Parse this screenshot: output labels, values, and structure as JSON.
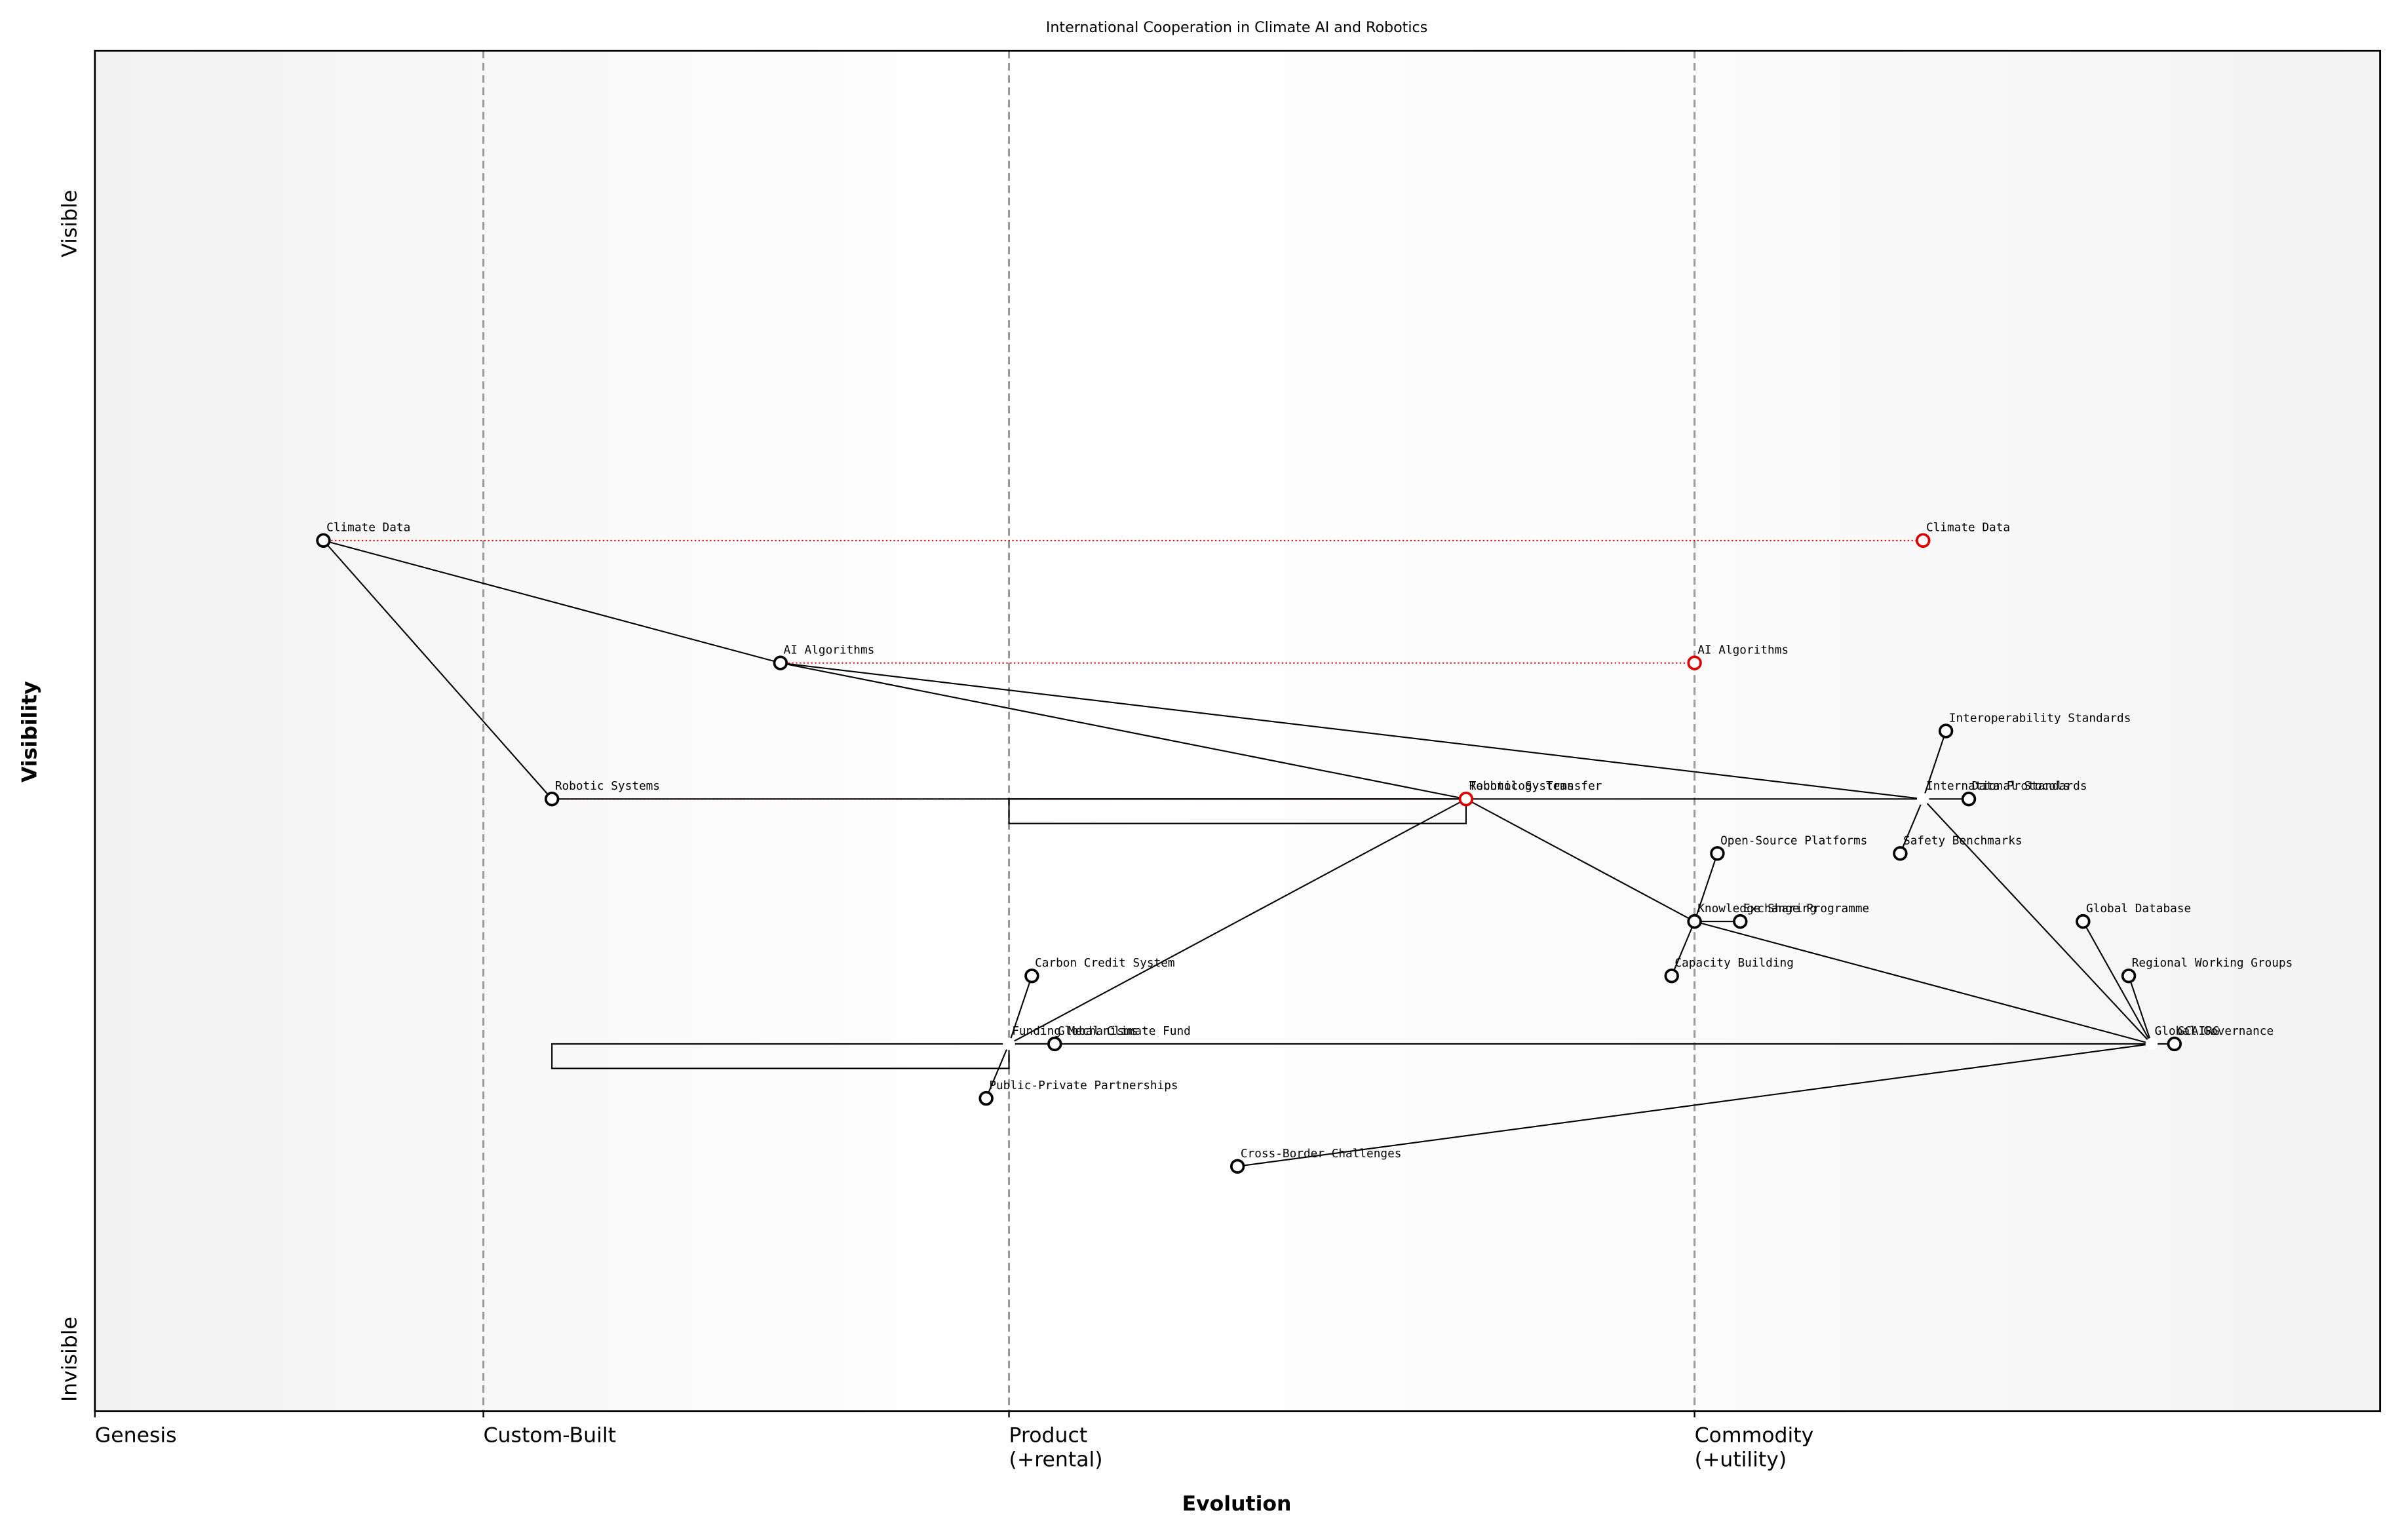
{
  "chart_data": {
    "type": "wardley",
    "title": "International Cooperation in Climate AI and Robotics",
    "x_label": "Evolution",
    "y_label": "Visibility",
    "y_top_label": "Visible",
    "y_bottom_label": "Invisible",
    "xlim": [
      0,
      1
    ],
    "ylim": [
      0,
      1
    ],
    "xticks": [
      {
        "value": 0,
        "label": "Genesis"
      },
      {
        "value": 0.17,
        "label": "Custom-Built"
      },
      {
        "value": 0.4,
        "label": "Product\n(+rental)"
      },
      {
        "value": 0.7,
        "label": "Commodity\n(+utility)"
      }
    ],
    "components": [
      {
        "name": "Climate Data",
        "evolution": 0.1,
        "visibility": 0.64,
        "marker": true
      },
      {
        "name": "AI Algorithms",
        "evolution": 0.3,
        "visibility": 0.55,
        "marker": true
      },
      {
        "name": "Robotic Systems",
        "evolution": 0.2,
        "visibility": 0.45,
        "marker": true
      },
      {
        "name": "Technology Transfer",
        "evolution": 0.6,
        "visibility": 0.45,
        "marker": false
      },
      {
        "name": "International Standards",
        "evolution": 0.8,
        "visibility": 0.45,
        "marker": false
      },
      {
        "name": "Interoperability Standards",
        "evolution": 0.81,
        "visibility": 0.5,
        "marker": true
      },
      {
        "name": "Data Protocols",
        "evolution": 0.82,
        "visibility": 0.45,
        "marker": true
      },
      {
        "name": "Safety Benchmarks",
        "evolution": 0.79,
        "visibility": 0.41,
        "marker": true
      },
      {
        "name": "Knowledge Sharing",
        "evolution": 0.7,
        "visibility": 0.36,
        "marker": true
      },
      {
        "name": "Open-Source Platforms",
        "evolution": 0.71,
        "visibility": 0.41,
        "marker": true
      },
      {
        "name": "Exchange Programme",
        "evolution": 0.72,
        "visibility": 0.36,
        "marker": true
      },
      {
        "name": "Capacity Building",
        "evolution": 0.69,
        "visibility": 0.32,
        "marker": true
      },
      {
        "name": "Global Governance",
        "evolution": 0.9,
        "visibility": 0.27,
        "marker": false
      },
      {
        "name": "Global Database",
        "evolution": 0.87,
        "visibility": 0.36,
        "marker": true
      },
      {
        "name": "Regional Working Groups",
        "evolution": 0.89,
        "visibility": 0.32,
        "marker": true
      },
      {
        "name": "GCAIRG",
        "evolution": 0.91,
        "visibility": 0.27,
        "marker": true
      },
      {
        "name": "Funding Mechanisms",
        "evolution": 0.4,
        "visibility": 0.27,
        "marker": false
      },
      {
        "name": "Global Climate Fund",
        "evolution": 0.42,
        "visibility": 0.27,
        "marker": true
      },
      {
        "name": "Carbon Credit System",
        "evolution": 0.41,
        "visibility": 0.32,
        "marker": true
      },
      {
        "name": "Public-Private Partnerships",
        "evolution": 0.39,
        "visibility": 0.23,
        "marker": true
      },
      {
        "name": "Cross-Border Challenges",
        "evolution": 0.5,
        "visibility": 0.18,
        "marker": true
      }
    ],
    "links": [
      [
        "Climate Data",
        "AI Algorithms"
      ],
      [
        "Climate Data",
        "Robotic Systems"
      ],
      [
        "AI Algorithms",
        "Technology Transfer"
      ],
      [
        "AI Algorithms",
        "International Standards"
      ],
      [
        "Robotic Systems",
        "Technology Transfer"
      ],
      [
        "Technology Transfer",
        "International Standards"
      ],
      [
        "Technology Transfer",
        "Knowledge Sharing"
      ],
      [
        "Technology Transfer",
        "Funding Mechanisms"
      ],
      [
        "International Standards",
        "Interoperability Standards"
      ],
      [
        "International Standards",
        "Data Protocols"
      ],
      [
        "International Standards",
        "Safety Benchmarks"
      ],
      [
        "International Standards",
        "Global Governance"
      ],
      [
        "Knowledge Sharing",
        "Open-Source Platforms"
      ],
      [
        "Knowledge Sharing",
        "Exchange Programme"
      ],
      [
        "Knowledge Sharing",
        "Capacity Building"
      ],
      [
        "Knowledge Sharing",
        "Global Governance"
      ],
      [
        "Global Governance",
        "Global Database"
      ],
      [
        "Global Governance",
        "Regional Working Groups"
      ],
      [
        "Global Governance",
        "GCAIRG"
      ],
      [
        "Global Governance",
        "Funding Mechanisms"
      ],
      [
        "Global Governance",
        "Cross-Border Challenges"
      ],
      [
        "Funding Mechanisms",
        "Global Climate Fund"
      ],
      [
        "Funding Mechanisms",
        "Carbon Credit System"
      ],
      [
        "Funding Mechanisms",
        "Public-Private Partnerships"
      ]
    ],
    "evolve": [
      {
        "name": "Climate Data",
        "to": 0.8
      },
      {
        "name": "AI Algorithms",
        "to": 0.7
      },
      {
        "name": "Robotic Systems",
        "to": 0.6
      }
    ],
    "pipelines": [
      {
        "component": "Technology Transfer",
        "start": 0.4,
        "end": 0.6
      },
      {
        "component": "Funding Mechanisms",
        "start": 0.2,
        "end": 0.4
      }
    ],
    "evolve_color": "#e00000"
  }
}
